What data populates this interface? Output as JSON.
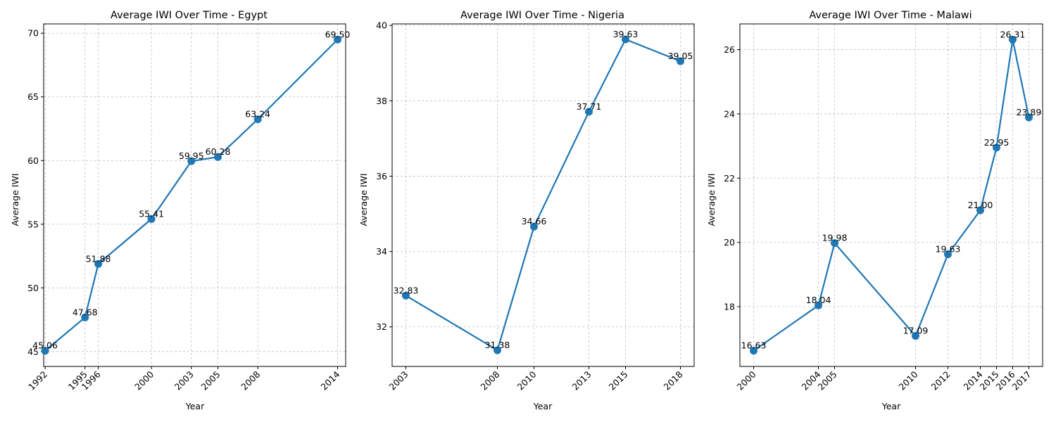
{
  "chart_data": [
    {
      "type": "line",
      "title": "Average IWI Over Time - Egypt",
      "xlabel": "Year",
      "ylabel": "Average IWI",
      "xlim": [
        1991.89,
        2014.61
      ],
      "ylim": [
        43.83,
        70.73
      ],
      "yticks": [
        45,
        50,
        55,
        60,
        65,
        70
      ],
      "grid": true,
      "color": "#1f77b4",
      "x": [
        1992,
        1995,
        1996,
        2000,
        2003,
        2005,
        2008,
        2014
      ],
      "xticklabels": [
        "1992",
        "1995",
        "1996",
        "2000",
        "2003",
        "2005",
        "2008",
        "2014"
      ],
      "y": [
        45.06,
        47.68,
        51.88,
        55.41,
        59.95,
        60.28,
        63.24,
        69.5
      ],
      "labels": [
        "45.06",
        "47.68",
        "51.88",
        "55.41",
        "59.95",
        "60.28",
        "63.24",
        "69.50"
      ]
    },
    {
      "type": "line",
      "title": "Average IWI Over Time - Nigeria",
      "xlabel": "Year",
      "ylabel": "Average IWI",
      "xlim": [
        2002.25,
        2018.75
      ],
      "ylim": [
        30.95,
        40.04
      ],
      "yticks": [
        32,
        34,
        36,
        38,
        40
      ],
      "grid": true,
      "color": "#1f77b4",
      "x": [
        2003,
        2008,
        2010,
        2013,
        2015,
        2018
      ],
      "xticklabels": [
        "2003",
        "2008",
        "2010",
        "2013",
        "2015",
        "2018"
      ],
      "y": [
        32.83,
        31.38,
        34.66,
        37.71,
        39.63,
        39.05
      ],
      "labels": [
        "32.83",
        "31.38",
        "34.66",
        "37.71",
        "39.63",
        "39.05"
      ]
    },
    {
      "type": "line",
      "title": "Average IWI Over Time - Malawi",
      "xlabel": "Year",
      "ylabel": "Average IWI",
      "xlim": [
        1999.15,
        2017.85
      ],
      "ylim": [
        16.14,
        26.8
      ],
      "yticks": [
        18,
        20,
        22,
        24,
        26
      ],
      "grid": true,
      "color": "#1f77b4",
      "x": [
        2000,
        2004,
        2005,
        2010,
        2012,
        2014,
        2015,
        2016,
        2017
      ],
      "xticklabels": [
        "2000",
        "2004",
        "2005",
        "2010",
        "2012",
        "2014",
        "2015",
        "2016",
        "2017"
      ],
      "y": [
        16.63,
        18.04,
        19.98,
        17.09,
        19.63,
        21.0,
        22.95,
        26.31,
        23.89
      ],
      "labels": [
        "16.63",
        "18.04",
        "19.98",
        "17.09",
        "19.63",
        "21.00",
        "22.95",
        "26.31",
        "23.89"
      ]
    }
  ]
}
